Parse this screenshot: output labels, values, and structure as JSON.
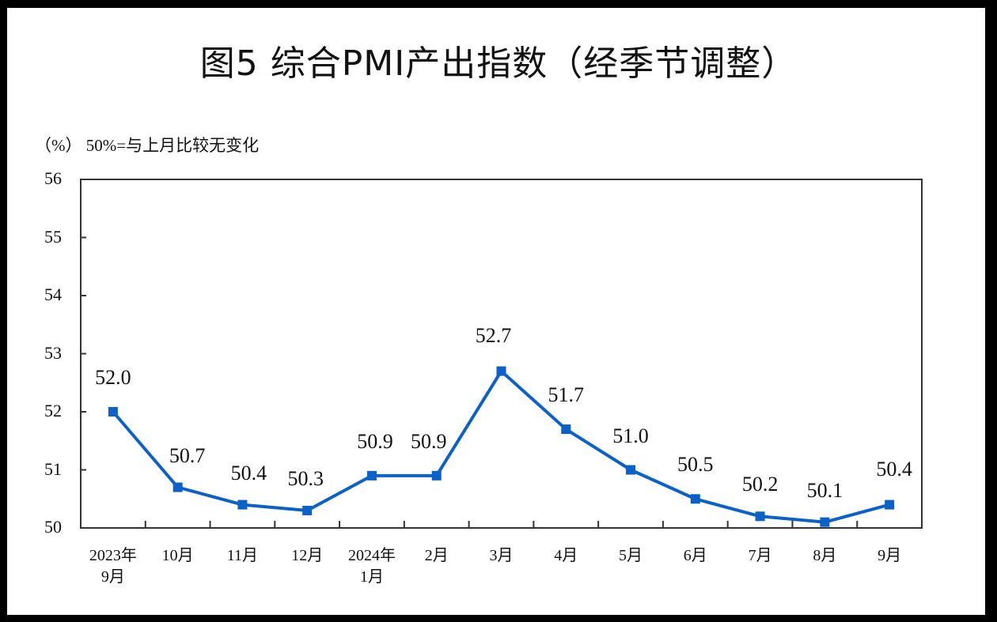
{
  "header": {
    "title": "图5  综合PMI产出指数（经季节调整）",
    "unit_note": "（%）  50%=与上月比较无变化"
  },
  "colors": {
    "line": "#0b61c8",
    "axis": "#333333",
    "text": "#111111"
  },
  "yaxis": {
    "ticks": [
      "56",
      "55",
      "54",
      "53",
      "52",
      "51",
      "50"
    ]
  },
  "xaxis": {
    "ticks": [
      {
        "line1": "2023年",
        "line2": "9月"
      },
      {
        "line1": "10月",
        "line2": ""
      },
      {
        "line1": "11月",
        "line2": ""
      },
      {
        "line1": "12月",
        "line2": ""
      },
      {
        "line1": "2024年",
        "line2": "1月"
      },
      {
        "line1": "2月",
        "line2": ""
      },
      {
        "line1": "3月",
        "line2": ""
      },
      {
        "line1": "4月",
        "line2": ""
      },
      {
        "line1": "5月",
        "line2": ""
      },
      {
        "line1": "6月",
        "line2": ""
      },
      {
        "line1": "7月",
        "line2": ""
      },
      {
        "line1": "8月",
        "line2": ""
      },
      {
        "line1": "9月",
        "line2": ""
      }
    ]
  },
  "labels": [
    "52.0",
    "50.7",
    "50.4",
    "50.3",
    "50.9",
    "50.9",
    "52.7",
    "51.7",
    "51.0",
    "50.5",
    "50.2",
    "50.1",
    "50.4"
  ],
  "chart_data": {
    "type": "line",
    "title": "图5 综合PMI产出指数（经季节调整）",
    "subtitle": "（%） 50%=与上月比较无变化",
    "xlabel": "",
    "ylabel": "%",
    "categories": [
      "2023年9月",
      "10月",
      "11月",
      "12月",
      "2024年1月",
      "2月",
      "3月",
      "4月",
      "5月",
      "6月",
      "7月",
      "8月",
      "9月"
    ],
    "series": [
      {
        "name": "综合PMI产出指数",
        "values": [
          52.0,
          50.7,
          50.4,
          50.3,
          50.9,
          50.9,
          52.7,
          51.7,
          51.0,
          50.5,
          50.2,
          50.1,
          50.4
        ],
        "color": "#0b61c8",
        "marker": "square"
      }
    ],
    "ylim": [
      50,
      56
    ],
    "yticks": [
      50,
      51,
      52,
      53,
      54,
      55,
      56
    ],
    "grid": false,
    "legend": "none"
  }
}
